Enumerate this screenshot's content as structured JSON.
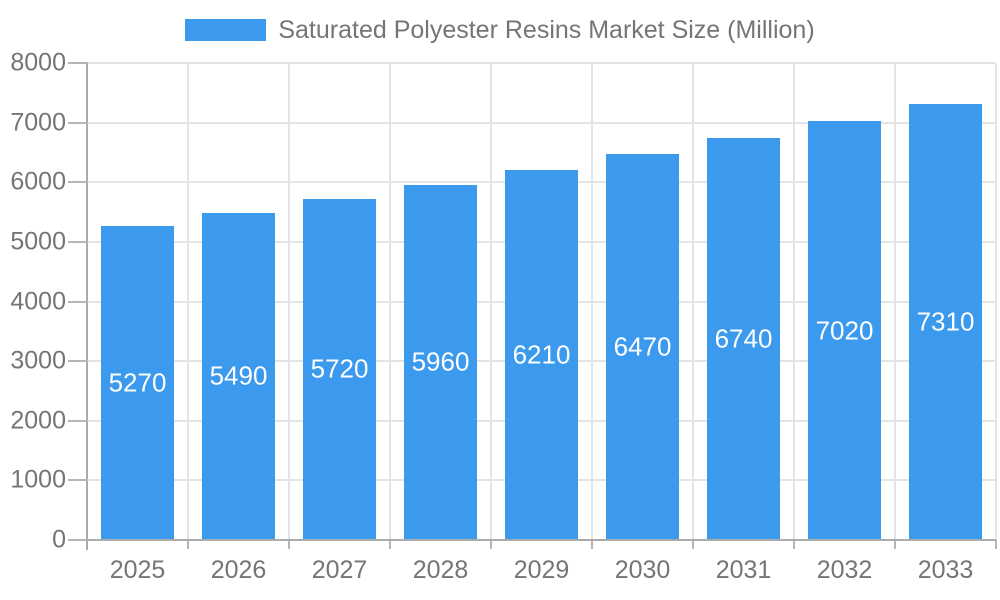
{
  "chart_data": {
    "type": "bar",
    "title": "Saturated Polyester Resins Market Size (Million)",
    "legend_position": "top",
    "categories": [
      "2025",
      "2026",
      "2027",
      "2028",
      "2029",
      "2030",
      "2031",
      "2032",
      "2033"
    ],
    "series": [
      {
        "name": "Saturated Polyester Resins Market Size (Million)",
        "values": [
          5270,
          5490,
          5720,
          5960,
          6210,
          6470,
          6740,
          7020,
          7310
        ]
      }
    ],
    "data_labels_shown": true,
    "xlabel": "",
    "ylabel": "",
    "ylim": [
      0,
      8000
    ],
    "yticks": [
      0,
      1000,
      2000,
      3000,
      4000,
      5000,
      6000,
      7000,
      8000
    ],
    "grid": true,
    "colors": {
      "bar": "#3B99EE",
      "bar_label_text": "#FFFFFF",
      "axis_line": "#ABABAB",
      "tick_line": "#B6B6B6",
      "gridline": "#E4E4E4",
      "text": "#757575",
      "background": "#FFFFFF"
    }
  }
}
